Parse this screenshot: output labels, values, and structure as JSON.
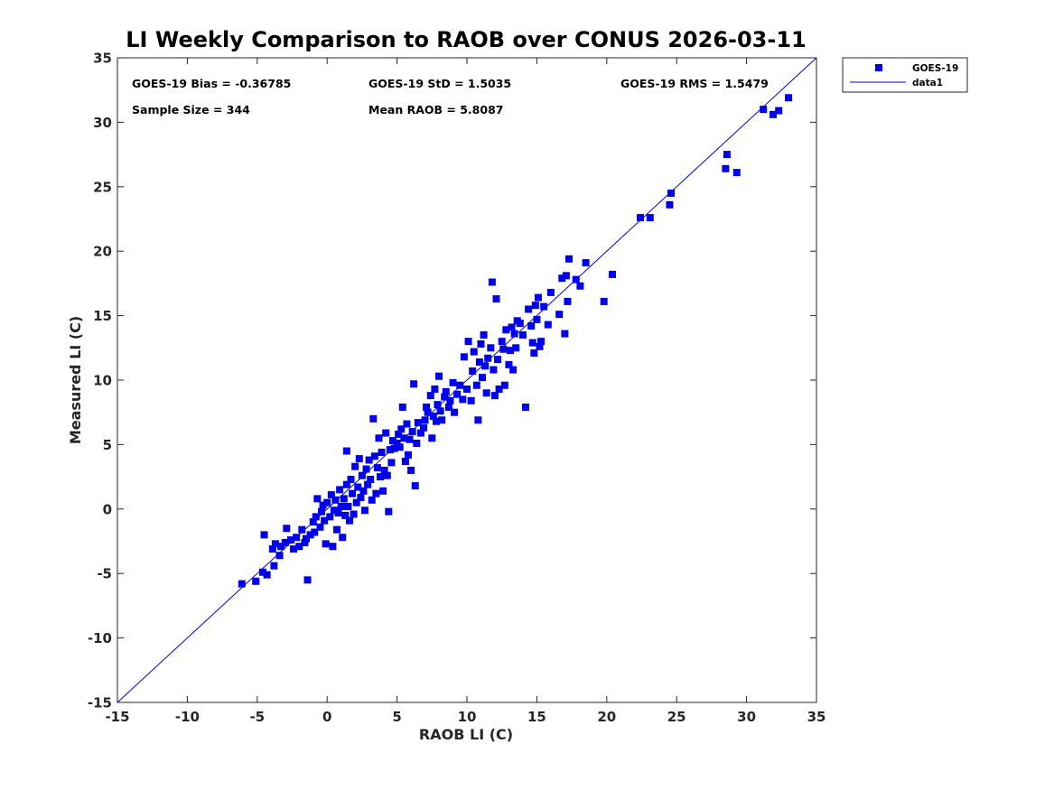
{
  "chart_data": {
    "type": "scatter",
    "title": "LI Weekly Comparison to RAOB over CONUS 2026-03-11",
    "xlabel": "RAOB LI (C)",
    "ylabel": "Measured LI (C)",
    "xlim": [
      -15,
      35
    ],
    "ylim": [
      -15,
      35
    ],
    "xticks": [
      -15,
      -10,
      -5,
      0,
      5,
      10,
      15,
      20,
      25,
      30,
      35
    ],
    "yticks": [
      -15,
      -10,
      -5,
      0,
      5,
      10,
      15,
      20,
      25,
      30,
      35
    ],
    "grid": false,
    "legend_position": "outside top-right",
    "marker_color": "#0000ee",
    "line_color": "#0000ee",
    "annotations": {
      "bias": "GOES-19 Bias = -0.36785",
      "std": "GOES-19 StD = 1.5035",
      "rms": "GOES-19 RMS = 1.5479",
      "sample_size": "Sample Size = 344",
      "mean_raob": "Mean RAOB = 5.8087"
    },
    "series": [
      {
        "name": "GOES-19",
        "kind": "scatter",
        "marker": "square",
        "points": [
          [
            -6.1,
            -5.8
          ],
          [
            -5.1,
            -5.6
          ],
          [
            -4.6,
            -4.9
          ],
          [
            -4.3,
            -5.1
          ],
          [
            -4.5,
            -2.0
          ],
          [
            -3.8,
            -4.4
          ],
          [
            -3.4,
            -3.6
          ],
          [
            -3.9,
            -3.1
          ],
          [
            -3.7,
            -2.7
          ],
          [
            -3.3,
            -2.9
          ],
          [
            -3.0,
            -2.6
          ],
          [
            -2.9,
            -1.5
          ],
          [
            -2.6,
            -2.4
          ],
          [
            -2.4,
            -3.1
          ],
          [
            -2.2,
            -2.2
          ],
          [
            -2.0,
            -2.9
          ],
          [
            -1.8,
            -1.6
          ],
          [
            -1.6,
            -2.6
          ],
          [
            -1.5,
            -2.3
          ],
          [
            -1.4,
            -5.5
          ],
          [
            -1.2,
            -2.0
          ],
          [
            -1.0,
            -1.0
          ],
          [
            -0.9,
            -1.8
          ],
          [
            -0.8,
            -0.6
          ],
          [
            -0.7,
            0.8
          ],
          [
            -0.5,
            -1.4
          ],
          [
            -0.4,
            -0.2
          ],
          [
            -0.3,
            0.3
          ],
          [
            -0.2,
            -0.9
          ],
          [
            -0.1,
            -2.7
          ],
          [
            0.0,
            0.5
          ],
          [
            0.2,
            -0.6
          ],
          [
            0.3,
            1.1
          ],
          [
            0.4,
            -2.9
          ],
          [
            0.5,
            -0.1
          ],
          [
            0.6,
            0.7
          ],
          [
            0.7,
            -1.6
          ],
          [
            0.8,
            -0.3
          ],
          [
            0.9,
            1.5
          ],
          [
            1.0,
            0.2
          ],
          [
            1.1,
            -2.2
          ],
          [
            1.2,
            0.8
          ],
          [
            1.3,
            -0.5
          ],
          [
            1.4,
            1.9
          ],
          [
            1.4,
            4.5
          ],
          [
            1.5,
            0.2
          ],
          [
            1.6,
            -0.9
          ],
          [
            1.7,
            2.3
          ],
          [
            1.8,
            1.2
          ],
          [
            1.9,
            -0.4
          ],
          [
            2.0,
            3.3
          ],
          [
            2.1,
            0.5
          ],
          [
            2.2,
            1.7
          ],
          [
            2.3,
            3.9
          ],
          [
            2.4,
            0.9
          ],
          [
            2.5,
            2.6
          ],
          [
            2.6,
            1.4
          ],
          [
            2.7,
            -0.1
          ],
          [
            2.8,
            3.1
          ],
          [
            2.9,
            1.9
          ],
          [
            3.0,
            3.8
          ],
          [
            3.1,
            2.3
          ],
          [
            3.2,
            0.7
          ],
          [
            3.3,
            7.0
          ],
          [
            3.4,
            4.1
          ],
          [
            3.5,
            1.2
          ],
          [
            3.6,
            3.2
          ],
          [
            3.7,
            5.5
          ],
          [
            3.8,
            2.5
          ],
          [
            3.9,
            4.4
          ],
          [
            4.0,
            1.4
          ],
          [
            4.1,
            3.0
          ],
          [
            4.2,
            5.9
          ],
          [
            4.3,
            2.6
          ],
          [
            4.4,
            -0.2
          ],
          [
            4.5,
            4.6
          ],
          [
            4.6,
            3.6
          ],
          [
            4.7,
            5.3
          ],
          [
            4.8,
            4.7
          ],
          [
            5.0,
            5.1
          ],
          [
            5.1,
            5.8
          ],
          [
            5.2,
            4.8
          ],
          [
            5.3,
            6.2
          ],
          [
            5.4,
            7.9
          ],
          [
            5.5,
            5.5
          ],
          [
            5.6,
            3.7
          ],
          [
            5.7,
            6.6
          ],
          [
            5.8,
            4.2
          ],
          [
            5.9,
            5.4
          ],
          [
            6.0,
            3.0
          ],
          [
            6.1,
            6.0
          ],
          [
            6.2,
            9.7
          ],
          [
            6.3,
            1.8
          ],
          [
            6.4,
            5.1
          ],
          [
            6.5,
            6.7
          ],
          [
            6.7,
            5.9
          ],
          [
            6.9,
            6.3
          ],
          [
            7.0,
            6.9
          ],
          [
            7.1,
            7.9
          ],
          [
            7.2,
            7.5
          ],
          [
            7.4,
            8.8
          ],
          [
            7.5,
            5.5
          ],
          [
            7.6,
            7.2
          ],
          [
            7.7,
            9.3
          ],
          [
            7.8,
            6.8
          ],
          [
            7.9,
            8.1
          ],
          [
            8.0,
            10.3
          ],
          [
            8.1,
            7.6
          ],
          [
            8.2,
            6.9
          ],
          [
            8.4,
            8.7
          ],
          [
            8.5,
            9.1
          ],
          [
            8.7,
            7.9
          ],
          [
            8.8,
            8.4
          ],
          [
            9.0,
            9.8
          ],
          [
            9.1,
            7.5
          ],
          [
            9.3,
            8.9
          ],
          [
            9.5,
            9.6
          ],
          [
            9.7,
            8.5
          ],
          [
            9.8,
            11.8
          ],
          [
            10.0,
            9.3
          ],
          [
            10.1,
            13.0
          ],
          [
            10.3,
            8.4
          ],
          [
            10.4,
            10.7
          ],
          [
            10.5,
            12.2
          ],
          [
            10.7,
            9.6
          ],
          [
            10.8,
            6.9
          ],
          [
            10.9,
            11.4
          ],
          [
            11.0,
            12.8
          ],
          [
            11.1,
            10.2
          ],
          [
            11.2,
            13.5
          ],
          [
            11.3,
            11.1
          ],
          [
            11.4,
            9.0
          ],
          [
            11.5,
            11.7
          ],
          [
            11.7,
            12.5
          ],
          [
            11.8,
            17.6
          ],
          [
            11.9,
            10.8
          ],
          [
            12.0,
            8.8
          ],
          [
            12.1,
            16.3
          ],
          [
            12.2,
            11.6
          ],
          [
            12.3,
            9.3
          ],
          [
            12.5,
            13.0
          ],
          [
            12.6,
            12.4
          ],
          [
            12.7,
            9.6
          ],
          [
            12.8,
            13.9
          ],
          [
            13.0,
            11.2
          ],
          [
            13.1,
            12.3
          ],
          [
            13.2,
            14.1
          ],
          [
            13.3,
            10.8
          ],
          [
            13.4,
            13.6
          ],
          [
            13.5,
            12.5
          ],
          [
            13.6,
            14.6
          ],
          [
            13.8,
            14.4
          ],
          [
            14.0,
            13.5
          ],
          [
            14.2,
            7.9
          ],
          [
            14.4,
            15.5
          ],
          [
            14.6,
            14.2
          ],
          [
            14.7,
            12.9
          ],
          [
            14.8,
            12.1
          ],
          [
            14.9,
            15.8
          ],
          [
            15.0,
            14.7
          ],
          [
            15.1,
            16.4
          ],
          [
            15.2,
            12.6
          ],
          [
            15.3,
            13.0
          ],
          [
            15.5,
            15.7
          ],
          [
            15.8,
            14.3
          ],
          [
            16.0,
            16.8
          ],
          [
            16.6,
            15.1
          ],
          [
            16.8,
            17.9
          ],
          [
            17.0,
            13.6
          ],
          [
            17.1,
            18.1
          ],
          [
            17.2,
            16.1
          ],
          [
            17.3,
            19.4
          ],
          [
            17.8,
            17.8
          ],
          [
            18.1,
            17.3
          ],
          [
            18.5,
            19.1
          ],
          [
            19.8,
            16.1
          ],
          [
            20.4,
            18.2
          ],
          [
            22.4,
            22.6
          ],
          [
            23.1,
            22.6
          ],
          [
            24.5,
            23.6
          ],
          [
            24.6,
            24.5
          ],
          [
            28.5,
            26.4
          ],
          [
            28.6,
            27.5
          ],
          [
            29.3,
            26.1
          ],
          [
            31.2,
            31.0
          ],
          [
            31.9,
            30.6
          ],
          [
            32.3,
            30.9
          ],
          [
            33.0,
            31.9
          ]
        ]
      },
      {
        "name": "data1",
        "kind": "line",
        "points": [
          [
            -15,
            -15
          ],
          [
            35,
            35
          ]
        ]
      }
    ]
  }
}
